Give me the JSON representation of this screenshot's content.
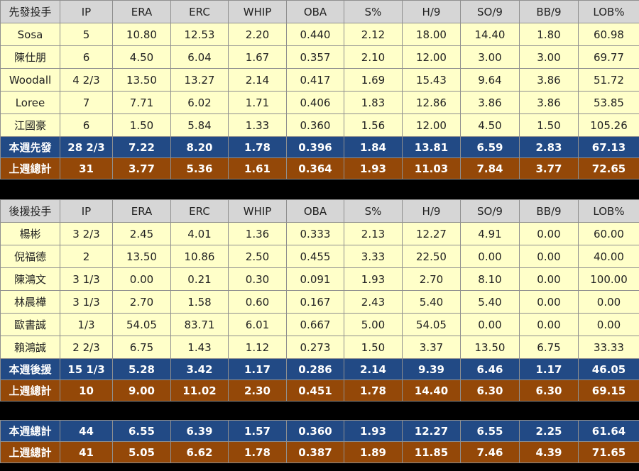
{
  "columns": [
    "IP",
    "ERA",
    "ERC",
    "WHIP",
    "OBA",
    "S%",
    "H/9",
    "SO/9",
    "BB/9",
    "LOB%"
  ],
  "starters": {
    "header": "先發投手",
    "rows": [
      [
        "Sosa",
        "5",
        "10.80",
        "12.53",
        "2.20",
        "0.440",
        "2.12",
        "18.00",
        "14.40",
        "1.80",
        "60.98"
      ],
      [
        "陳仕朋",
        "6",
        "4.50",
        "6.04",
        "1.67",
        "0.357",
        "2.10",
        "12.00",
        "3.00",
        "3.00",
        "69.77"
      ],
      [
        "Woodall",
        "4 2/3",
        "13.50",
        "13.27",
        "2.14",
        "0.417",
        "1.69",
        "15.43",
        "9.64",
        "3.86",
        "51.72"
      ],
      [
        "Loree",
        "7",
        "7.71",
        "6.02",
        "1.71",
        "0.406",
        "1.83",
        "12.86",
        "3.86",
        "3.86",
        "53.85"
      ],
      [
        "江國豪",
        "6",
        "1.50",
        "5.84",
        "1.33",
        "0.360",
        "1.56",
        "12.00",
        "4.50",
        "1.50",
        "105.26"
      ]
    ],
    "this_week": [
      "本週先發",
      "28 2/3",
      "7.22",
      "8.20",
      "1.78",
      "0.396",
      "1.84",
      "13.81",
      "6.59",
      "2.83",
      "67.13"
    ],
    "last_week": [
      "上週總計",
      "31",
      "3.77",
      "5.36",
      "1.61",
      "0.364",
      "1.93",
      "11.03",
      "7.84",
      "3.77",
      "72.65"
    ]
  },
  "relievers": {
    "header": "後援投手",
    "rows": [
      [
        "楊彬",
        "3 2/3",
        "2.45",
        "4.01",
        "1.36",
        "0.333",
        "2.13",
        "12.27",
        "4.91",
        "0.00",
        "60.00"
      ],
      [
        "倪福德",
        "2",
        "13.50",
        "10.86",
        "2.50",
        "0.455",
        "3.33",
        "22.50",
        "0.00",
        "0.00",
        "40.00"
      ],
      [
        "陳鴻文",
        "3 1/3",
        "0.00",
        "0.21",
        "0.30",
        "0.091",
        "1.93",
        "2.70",
        "8.10",
        "0.00",
        "100.00"
      ],
      [
        "林晨樺",
        "3 1/3",
        "2.70",
        "1.58",
        "0.60",
        "0.167",
        "2.43",
        "5.40",
        "5.40",
        "0.00",
        "0.00"
      ],
      [
        "歐書誠",
        "1/3",
        "54.05",
        "83.71",
        "6.01",
        "0.667",
        "5.00",
        "54.05",
        "0.00",
        "0.00",
        "0.00"
      ],
      [
        "賴鴻誠",
        "2 2/3",
        "6.75",
        "1.43",
        "1.12",
        "0.273",
        "1.50",
        "3.37",
        "13.50",
        "6.75",
        "33.33"
      ]
    ],
    "this_week": [
      "本週後援",
      "15 1/3",
      "5.28",
      "3.42",
      "1.17",
      "0.286",
      "2.14",
      "9.39",
      "6.46",
      "1.17",
      "46.05"
    ],
    "last_week": [
      "上週總計",
      "10",
      "9.00",
      "11.02",
      "2.30",
      "0.451",
      "1.78",
      "14.40",
      "6.30",
      "6.30",
      "69.15"
    ]
  },
  "totals": {
    "this_week": [
      "本週總計",
      "44",
      "6.55",
      "6.39",
      "1.57",
      "0.360",
      "1.93",
      "12.27",
      "6.55",
      "2.25",
      "61.64"
    ],
    "last_week": [
      "上週總計",
      "41",
      "5.05",
      "6.62",
      "1.78",
      "0.387",
      "1.89",
      "11.85",
      "7.46",
      "4.39",
      "71.65"
    ]
  },
  "colors": {
    "header_bg": "#d6d6d6",
    "row_bg": "#ffffc9",
    "blue_bg": "#224a85",
    "brown_bg": "#944808"
  }
}
